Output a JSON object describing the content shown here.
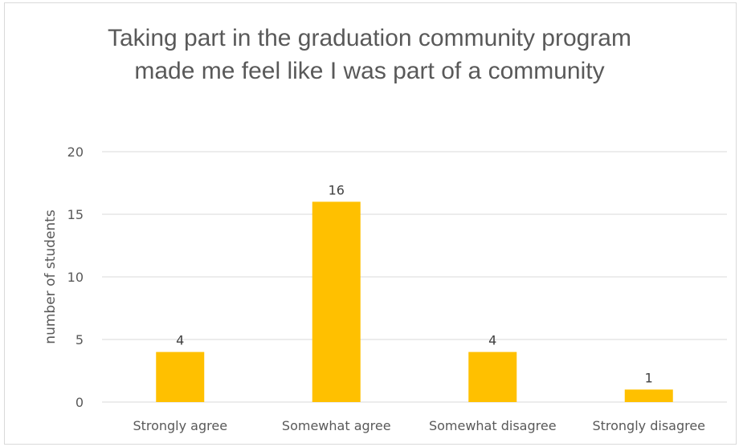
{
  "chart_data": {
    "type": "bar",
    "title": "Taking part in the graduation community program made me feel like I was part of a community",
    "xlabel": "",
    "ylabel": "number of students",
    "categories": [
      "Strongly agree",
      "Somewhat agree",
      "Somewhat disagree",
      "Strongly disagree"
    ],
    "values": [
      4,
      16,
      4,
      1
    ],
    "data_labels": [
      "4",
      "16",
      "4",
      "1"
    ],
    "ylim": [
      0,
      20
    ],
    "yticks": [
      0,
      5,
      10,
      15,
      20
    ],
    "grid": true,
    "legend": "none",
    "bar_color": "#FFC000",
    "gridline_color": "#D9D9D9",
    "text_color": "#595959"
  }
}
